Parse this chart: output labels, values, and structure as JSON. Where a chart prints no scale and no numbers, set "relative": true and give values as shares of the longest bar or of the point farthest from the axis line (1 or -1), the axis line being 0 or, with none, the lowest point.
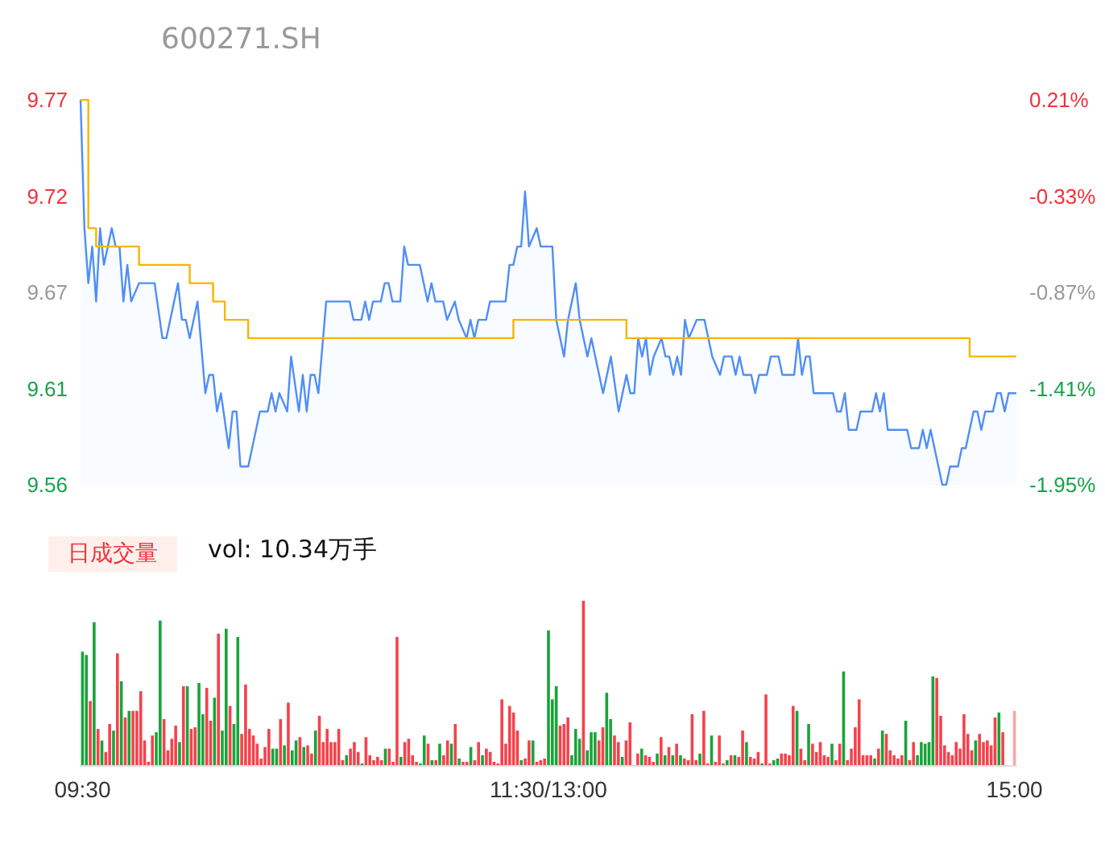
{
  "chart_data": [
    {
      "type": "area",
      "title": "600271.SH",
      "tick_labels": "y",
      "categories": [
        null,
        null,
        null,
        null,
        null,
        null,
        null,
        null,
        null,
        null,
        null,
        null,
        null,
        null,
        null,
        null,
        null,
        null,
        null,
        null,
        null,
        null,
        null,
        null,
        null,
        null,
        null,
        null,
        null,
        null,
        null,
        null,
        null,
        null,
        null,
        null,
        null,
        null,
        null,
        null,
        null,
        null,
        null,
        null,
        null,
        null,
        null,
        null,
        null,
        null,
        null,
        null,
        null,
        null,
        null,
        null,
        null,
        null,
        null,
        null,
        null,
        null,
        null,
        null,
        null,
        null,
        null,
        null,
        null,
        null,
        null,
        null,
        null,
        null,
        null,
        null,
        null,
        null,
        null,
        null,
        null,
        null,
        null,
        null,
        null,
        null,
        null,
        null,
        null,
        null,
        null,
        null,
        null,
        null,
        null,
        null,
        null,
        null,
        null,
        null,
        null,
        null,
        null,
        null,
        null,
        null,
        null,
        null,
        null,
        null,
        null,
        null,
        null,
        null,
        null,
        null,
        null,
        null,
        null,
        null,
        null,
        null,
        null,
        null,
        null,
        null,
        null,
        null,
        null,
        null,
        null,
        null,
        null,
        null,
        null,
        null,
        null,
        null,
        null,
        null,
        null,
        null,
        null,
        null,
        null,
        null,
        null,
        null,
        null,
        null,
        null,
        null,
        null,
        null,
        null,
        null,
        null,
        null,
        null,
        null,
        null,
        null,
        null,
        null,
        null,
        null,
        null,
        null,
        null,
        null,
        null,
        null,
        null,
        null,
        null,
        null,
        null,
        null,
        null,
        null,
        null,
        null,
        null,
        null,
        null,
        null,
        null,
        null,
        null,
        null,
        null,
        null,
        null,
        null,
        null,
        null,
        null,
        null,
        null,
        null,
        null,
        null,
        null,
        null,
        null,
        null,
        null,
        null,
        null,
        null,
        null,
        null,
        null,
        null,
        null,
        null,
        null,
        null,
        null,
        null,
        null,
        null,
        null,
        null,
        null,
        null,
        null,
        null,
        null,
        null,
        null,
        null,
        null,
        null,
        null,
        null,
        null,
        null,
        null,
        null,
        null
      ],
      "ylim": [
        9.56,
        9.77
      ],
      "yticks": [
        9.56,
        {
          "value": 9.6125,
          "label": "9.61"
        },
        {
          "value": 9.665,
          "label": "9.67"
        },
        {
          "value": 9.7175,
          "label": "9.72"
        },
        9.77
      ],
      "y2lim": [
        -1.95,
        0.21
      ],
      "y2ticks": [
        {
          "value": -1.95,
          "label": "-1.95%"
        },
        {
          "value": -1.41,
          "label": "-1.41%"
        },
        {
          "value": -0.87,
          "label": "-0.87%"
        },
        {
          "value": -0.33,
          "label": "-0.33%"
        },
        {
          "value": 0.21,
          "label": "0.21%"
        }
      ],
      "series": [
        {
          "type": "area",
          "color": "#4f8ef7",
          "values": [
            9.77,
            9.7,
            9.67,
            9.69,
            9.66,
            9.7,
            9.68,
            null,
            9.7,
            9.69,
            9.69,
            9.66,
            9.68,
            9.66,
            null,
            9.67,
            null,
            null,
            null,
            9.67,
            null,
            9.64,
            9.64,
            null,
            null,
            9.67,
            9.65,
            9.65,
            9.64,
            null,
            9.66,
            null,
            9.61,
            9.62,
            9.62,
            9.6,
            9.61,
            null,
            9.58,
            9.6,
            9.6,
            9.57,
            null,
            9.57,
            null,
            null,
            9.6,
            null,
            9.6,
            9.61,
            9.6,
            9.61,
            null,
            9.6,
            9.63,
            null,
            9.6,
            9.62,
            9.6,
            9.62,
            9.62,
            9.61,
            null,
            9.66,
            null,
            null,
            null,
            null,
            null,
            9.66,
            9.65,
            null,
            9.65,
            9.66,
            9.65,
            9.66,
            null,
            9.66,
            9.67,
            9.67,
            9.66,
            null,
            9.66,
            9.69,
            9.68,
            null,
            null,
            9.68,
            9.67,
            9.66,
            9.67,
            9.66,
            null,
            9.66,
            9.65,
            null,
            9.66,
            9.65,
            null,
            9.64,
            9.65,
            9.64,
            9.65,
            null,
            9.65,
            9.66,
            null,
            null,
            null,
            9.66,
            9.68,
            9.68,
            9.69,
            9.69,
            9.72,
            9.69,
            null,
            9.7,
            9.69,
            null,
            null,
            9.69,
            9.65,
            null,
            9.63,
            9.65,
            null,
            9.67,
            9.65,
            null,
            9.63,
            9.64,
            null,
            null,
            9.61,
            null,
            9.63,
            null,
            9.6,
            null,
            9.62,
            9.61,
            9.61,
            9.64,
            9.63,
            9.64,
            9.62,
            9.63,
            null,
            9.64,
            9.63,
            9.63,
            9.62,
            9.63,
            9.62,
            9.65,
            9.64,
            null,
            9.65,
            null,
            9.65,
            null,
            9.63,
            null,
            9.62,
            9.63,
            null,
            9.63,
            9.62,
            9.63,
            9.62,
            null,
            9.62,
            9.61,
            9.62,
            null,
            9.62,
            9.63,
            null,
            9.63,
            9.62,
            null,
            null,
            9.62,
            9.64,
            9.62,
            9.63,
            9.63,
            9.61,
            null,
            null,
            null,
            null,
            9.61,
            9.6,
            9.6,
            9.61,
            9.59,
            null,
            9.59,
            9.6,
            null,
            null,
            9.6,
            9.61,
            9.6,
            9.61,
            9.59,
            null,
            null,
            null,
            null,
            9.59,
            9.58,
            null,
            9.58,
            9.59,
            9.58,
            9.59,
            null,
            9.57,
            9.56,
            9.56,
            9.57,
            null,
            9.57,
            9.58,
            9.58,
            null,
            9.6,
            9.6,
            9.59,
            9.6,
            null,
            9.6,
            9.61,
            9.61,
            9.6,
            9.61,
            null,
            9.61
          ]
        },
        {
          "type": "step",
          "color": "#f7b500",
          "values": [
            9.77,
            null,
            9.7,
            null,
            9.69,
            null,
            null,
            null,
            null,
            null,
            null,
            null,
            null,
            null,
            null,
            9.68,
            null,
            null,
            null,
            null,
            null,
            null,
            null,
            null,
            null,
            null,
            null,
            null,
            9.67,
            null,
            null,
            null,
            null,
            null,
            9.66,
            null,
            null,
            9.65,
            null,
            null,
            null,
            null,
            null,
            9.64,
            null,
            null,
            null,
            null,
            null,
            null,
            null,
            null,
            null,
            null,
            null,
            null,
            null,
            null,
            null,
            null,
            null,
            null,
            null,
            null,
            null,
            null,
            null,
            null,
            null,
            null,
            null,
            null,
            null,
            null,
            null,
            null,
            null,
            null,
            null,
            null,
            null,
            null,
            null,
            null,
            null,
            null,
            null,
            null,
            null,
            null,
            null,
            null,
            null,
            null,
            null,
            null,
            null,
            null,
            null,
            null,
            null,
            null,
            null,
            null,
            null,
            null,
            null,
            null,
            null,
            null,
            null,
            9.65,
            null,
            null,
            null,
            null,
            null,
            null,
            null,
            null,
            null,
            null,
            null,
            null,
            null,
            null,
            null,
            null,
            null,
            null,
            null,
            null,
            null,
            null,
            null,
            null,
            null,
            null,
            null,
            null,
            9.64,
            null,
            null,
            null,
            null,
            null,
            null,
            null,
            null,
            null,
            null,
            null,
            null,
            null,
            null,
            null,
            null,
            null,
            null,
            null,
            null,
            null,
            null,
            null,
            null,
            null,
            null,
            null,
            null,
            null,
            null,
            null,
            null,
            null,
            null,
            null,
            null,
            null,
            null,
            null,
            null,
            null,
            null,
            null,
            null,
            null,
            null,
            null,
            null,
            null,
            null,
            null,
            null,
            null,
            null,
            null,
            null,
            null,
            null,
            null,
            null,
            null,
            null,
            null,
            null,
            null,
            null,
            null,
            null,
            null,
            null,
            null,
            null,
            null,
            null,
            null,
            null,
            null,
            null,
            null,
            null,
            null,
            null,
            null,
            null,
            null,
            null,
            null,
            9.63,
            null,
            null,
            null,
            null,
            null,
            null,
            null,
            null,
            null,
            null,
            null,
            9.63
          ]
        }
      ]
    },
    {
      "type": "bar",
      "title": "日成交量",
      "subtitle": "vol: 10.34万手",
      "relative": true,
      "tick_labels": "x",
      "categories": [
        "09:30",
        null,
        null,
        null,
        null,
        null,
        null,
        null,
        null,
        null,
        null,
        null,
        null,
        null,
        null,
        null,
        null,
        null,
        null,
        null,
        null,
        null,
        null,
        null,
        null,
        null,
        null,
        null,
        null,
        null,
        null,
        null,
        null,
        null,
        null,
        null,
        null,
        null,
        null,
        null,
        null,
        null,
        null,
        null,
        null,
        null,
        null,
        null,
        null,
        null,
        null,
        null,
        null,
        null,
        null,
        null,
        null,
        null,
        null,
        null,
        null,
        null,
        null,
        null,
        null,
        null,
        null,
        null,
        null,
        null,
        null,
        null,
        null,
        null,
        null,
        null,
        null,
        null,
        null,
        null,
        null,
        null,
        null,
        null,
        null,
        null,
        null,
        null,
        null,
        null,
        null,
        null,
        null,
        null,
        null,
        null,
        null,
        null,
        null,
        null,
        null,
        null,
        null,
        null,
        null,
        null,
        null,
        null,
        null,
        null,
        null,
        null,
        null,
        null,
        null,
        null,
        null,
        null,
        null,
        null,
        "11:30/13:00",
        null,
        null,
        null,
        null,
        null,
        null,
        null,
        null,
        null,
        null,
        null,
        null,
        null,
        null,
        null,
        null,
        null,
        null,
        null,
        null,
        null,
        null,
        null,
        null,
        null,
        null,
        null,
        null,
        null,
        null,
        null,
        null,
        null,
        null,
        null,
        null,
        null,
        null,
        null,
        null,
        null,
        null,
        null,
        null,
        null,
        null,
        null,
        null,
        null,
        null,
        null,
        null,
        null,
        null,
        null,
        null,
        null,
        null,
        null,
        null,
        null,
        null,
        null,
        null,
        null,
        null,
        null,
        null,
        null,
        null,
        null,
        null,
        null,
        null,
        null,
        null,
        null,
        null,
        null,
        null,
        null,
        null,
        null,
        null,
        null,
        null,
        null,
        null,
        null,
        null,
        null,
        null,
        null,
        null,
        null,
        null,
        null,
        null,
        null,
        null,
        null,
        null,
        null,
        null,
        null,
        null,
        null,
        null,
        null,
        null,
        null,
        null,
        null,
        null,
        null,
        null,
        null,
        null,
        null,
        "15:00"
      ],
      "values": [
        0.69,
        0.67,
        0.39,
        0.87,
        0.22,
        0.15,
        0.08,
        0.25,
        0.21,
        0.68,
        0.51,
        0.29,
        0.33,
        0.33,
        0.33,
        0.45,
        0.15,
        0.02,
        0.18,
        0.2,
        0.88,
        0.28,
        0.09,
        0.16,
        0.24,
        0.14,
        0.48,
        0.48,
        0.22,
        0.23,
        0.5,
        0.31,
        0.47,
        0.27,
        0.41,
        0.8,
        0.21,
        0.83,
        0.36,
        0.25,
        0.78,
        0.19,
        0.49,
        0.22,
        0.18,
        0.13,
        0.04,
        0.11,
        0.22,
        0.1,
        0.1,
        0.28,
        0.12,
        0.38,
        0.09,
        0.15,
        0.17,
        0.11,
        0.12,
        0.07,
        0.21,
        0.3,
        0.14,
        0.22,
        0.14,
        0.14,
        0.22,
        0.03,
        0.06,
        0.1,
        0.14,
        0.08,
        0.01,
        0.17,
        0.06,
        0.03,
        0.05,
        0.03,
        0.1,
        0.1,
        0.02,
        0.78,
        0.05,
        0.14,
        0.16,
        0.06,
        0.02,
        0.01,
        0.18,
        0.13,
        0.03,
        0.03,
        0.13,
        0.06,
        0.15,
        0.13,
        0.25,
        0.04,
        0.02,
        0.02,
        0.11,
        0.03,
        0.14,
        0.06,
        0.1,
        0.08,
        0.02,
        0.01,
        0.4,
        0.13,
        0.36,
        0.32,
        0.21,
        0.03,
        0.04,
        0.15,
        0.15,
        0.02,
        0.03,
        0.04,
        0.82,
        0.4,
        0.48,
        0.24,
        0.25,
        0.29,
        0.06,
        0.22,
        0.16,
        1,
        0.09,
        0.2,
        0.2,
        0.15,
        0.23,
        0.44,
        0.28,
        0.18,
        0.14,
        0.05,
        0.15,
        0.26,
        null,
        0.07,
        0.1,
        0.06,
        0.05,
        0.02,
        0.07,
        0.17,
        0.06,
        0.11,
        0.06,
        0.13,
        0.06,
        0.04,
        0.03,
        0.31,
        0.03,
        0.07,
        0.33,
        0.01,
        0.18,
        0.02,
        0.18,
        0.01,
        0.03,
        0.06,
        0.06,
        0.05,
        0.21,
        0.14,
        0.05,
        0.04,
        0.08,
        0.01,
        0.43,
        0.01,
        0.03,
        0.04,
        0.07,
        0.07,
        0.06,
        0.36,
        0.33,
        0.1,
        0.03,
        0.25,
        0.13,
        0.08,
        0.14,
        0.06,
        0.05,
        0.13,
        0.03,
        0.13,
        0.57,
        0.03,
        0.1,
        0.23,
        0.4,
        0.06,
        0.06,
        0.06,
        0.04,
        0.1,
        0.21,
        0.19,
        0.09,
        0.06,
        0.04,
        0.06,
        0.27,
        0.03,
        0.14,
        0.06,
        0.14,
        0.13,
        0.14,
        0.54,
        0.53,
        0.3,
        0.12,
        0.08,
        0.06,
        0.14,
        0.1,
        0.31,
        0.19,
        0.09,
        0.15,
        0.19,
        0.14,
        0.15,
        0.12,
        0.29,
        0.32,
        0.2,
        null,
        null,
        0.33
      ],
      "colors": [
        "#1aa33a",
        "#1aa33a",
        "#f5424b",
        "#1aa33a",
        "#f5424b",
        "#1aa33a",
        "#f5424b",
        "#f5424b",
        "#1aa33a",
        "#f5424b",
        "#1aa33a",
        "#f5424b",
        "#1aa33a",
        "#f5424b",
        "#f5424b",
        "#f5424b",
        "#f5424b",
        "#f5424b",
        "#f5424b",
        "#1aa33a",
        "#1aa33a",
        "#f5424b",
        "#f5424b",
        "#f5424b",
        "#f5424b",
        "#1aa33a",
        "#f5424b",
        "#1aa33a",
        "#f5424b",
        "#f5424b",
        "#1aa33a",
        "#1aa33a",
        "#f5424b",
        "#f5424b",
        "#1aa33a",
        "#f5424b",
        "#1aa33a",
        "#1aa33a",
        "#f5424b",
        "#1aa33a",
        "#1aa33a",
        "#f5424b",
        "#f5424b",
        "#f5424b",
        "#f5424b",
        "#f5424b",
        "#f5424b",
        "#f5424b",
        "#f5424b",
        "#1aa33a",
        "#1aa33a",
        "#f5424b",
        "#1aa33a",
        "#f5424b",
        "#1aa33a",
        "#1aa33a",
        "#f5424b",
        "#1aa33a",
        "#f5424b",
        "#f5424b",
        "#1aa33a",
        "#f5424b",
        "#f5424b",
        "#f5424b",
        "#f5424b",
        "#f5424b",
        "#f5424b",
        "#f5424b",
        "#1aa33a",
        "#f5424b",
        "#f5424b",
        "#f5424b",
        "#1aa33a",
        "#f5424b",
        "#f5424b",
        "#f5424b",
        "#f5424b",
        "#f5424b",
        "#1aa33a",
        "#f5424b",
        "#f5424b",
        "#f5424b",
        "#1aa33a",
        "#f5424b",
        "#f5424b",
        "#f5424b",
        "#f5424b",
        "#1aa33a",
        "#1aa33a",
        "#f5424b",
        "#1aa33a",
        "#f5424b",
        "#1aa33a",
        "#f5424b",
        "#f5424b",
        "#1aa33a",
        "#f5424b",
        "#1aa33a",
        "#f5424b",
        "#f5424b",
        "#1aa33a",
        "#f5424b",
        "#f5424b",
        "#1aa33a",
        "#f5424b",
        "#f5424b",
        "#f5424b",
        "#f5424b",
        "#f5424b",
        "#f5424b",
        "#f5424b",
        "#f5424b",
        "#f5424b",
        "#1aa33a",
        "#f5424b",
        "#f5424b",
        "#1aa33a",
        "#f5424b",
        "#f5424b",
        "#f5424b",
        "#1aa33a",
        "#1aa33a",
        "#1aa33a",
        "#f5424b",
        "#f5424b",
        "#f5424b",
        "#1aa33a",
        "#1aa33a",
        "#1aa33a",
        "#f5424b",
        "#1aa33a",
        "#1aa33a",
        "#1aa33a",
        "#f5424b",
        "#f5424b",
        "#1aa33a",
        "#1aa33a",
        "#f5424b",
        "#f5424b",
        "#1aa33a",
        "#f5424b",
        "#f5424b",
        "#f5424b",
        "#f5424b",
        "#1aa33a",
        "#f5424b",
        "#f5424b",
        "#f5424b",
        "#1aa33a",
        "#f5424b",
        "#1aa33a",
        "#f5424b",
        "#1aa33a",
        "#f5424b",
        "#1aa33a",
        "#f5424b",
        "#f5424b",
        "#f5424b",
        "#f5424b",
        "#1aa33a",
        "#f5424b",
        "#f5424b",
        "#1aa33a",
        "#f5424b",
        "#f5424b",
        "#f5424b",
        "#1aa33a",
        "#f5424b",
        "#1aa33a",
        "#f5424b",
        "#f5424b",
        "#1aa33a",
        "#f5424b",
        "#f5424b",
        "#f5424b",
        "#1aa33a",
        "#f5424b",
        "#f5424b",
        "#1aa33a",
        "#1aa33a",
        "#f5424b",
        "#f5424b",
        "#f5424b",
        "#f5424b",
        "#1aa33a",
        "#f5424b",
        "#f5424b",
        "#1aa33a",
        "#f5424b",
        "#f5424b",
        "#f5424b",
        "#f5424b",
        "#f5424b",
        "#1aa33a",
        "#f5424b",
        "#f5424b",
        "#1aa33a",
        "#f5424b",
        "#f5424b",
        "#f5424b",
        "#f5424b",
        "#f5424b",
        "#f5424b",
        "#f5424b",
        "#1aa33a",
        "#f5424b",
        "#1aa33a",
        "#f5424b",
        "#f5424b",
        "#f5424b",
        "#f5424b",
        "#f5424b",
        "#1aa33a",
        "#f5424b",
        "#f5424b",
        "#1aa33a",
        "#1aa33a",
        "#1aa33a",
        "#1aa33a",
        "#1aa33a",
        "#f5424b",
        "#f5424b",
        "#f5424b",
        "#f5424b",
        "#f5424b",
        "#f5424b",
        "#f5424b",
        "#f5424b",
        "#f5424b",
        "#f5424b",
        "#1aa33a",
        "#f5424b",
        "#f5424b",
        "#f5424b",
        "#f5424b",
        "#f5424b",
        "#1aa33a",
        "#f5424b",
        "#f5424b",
        "#f5424b",
        "#ffa3a6"
      ]
    }
  ]
}
